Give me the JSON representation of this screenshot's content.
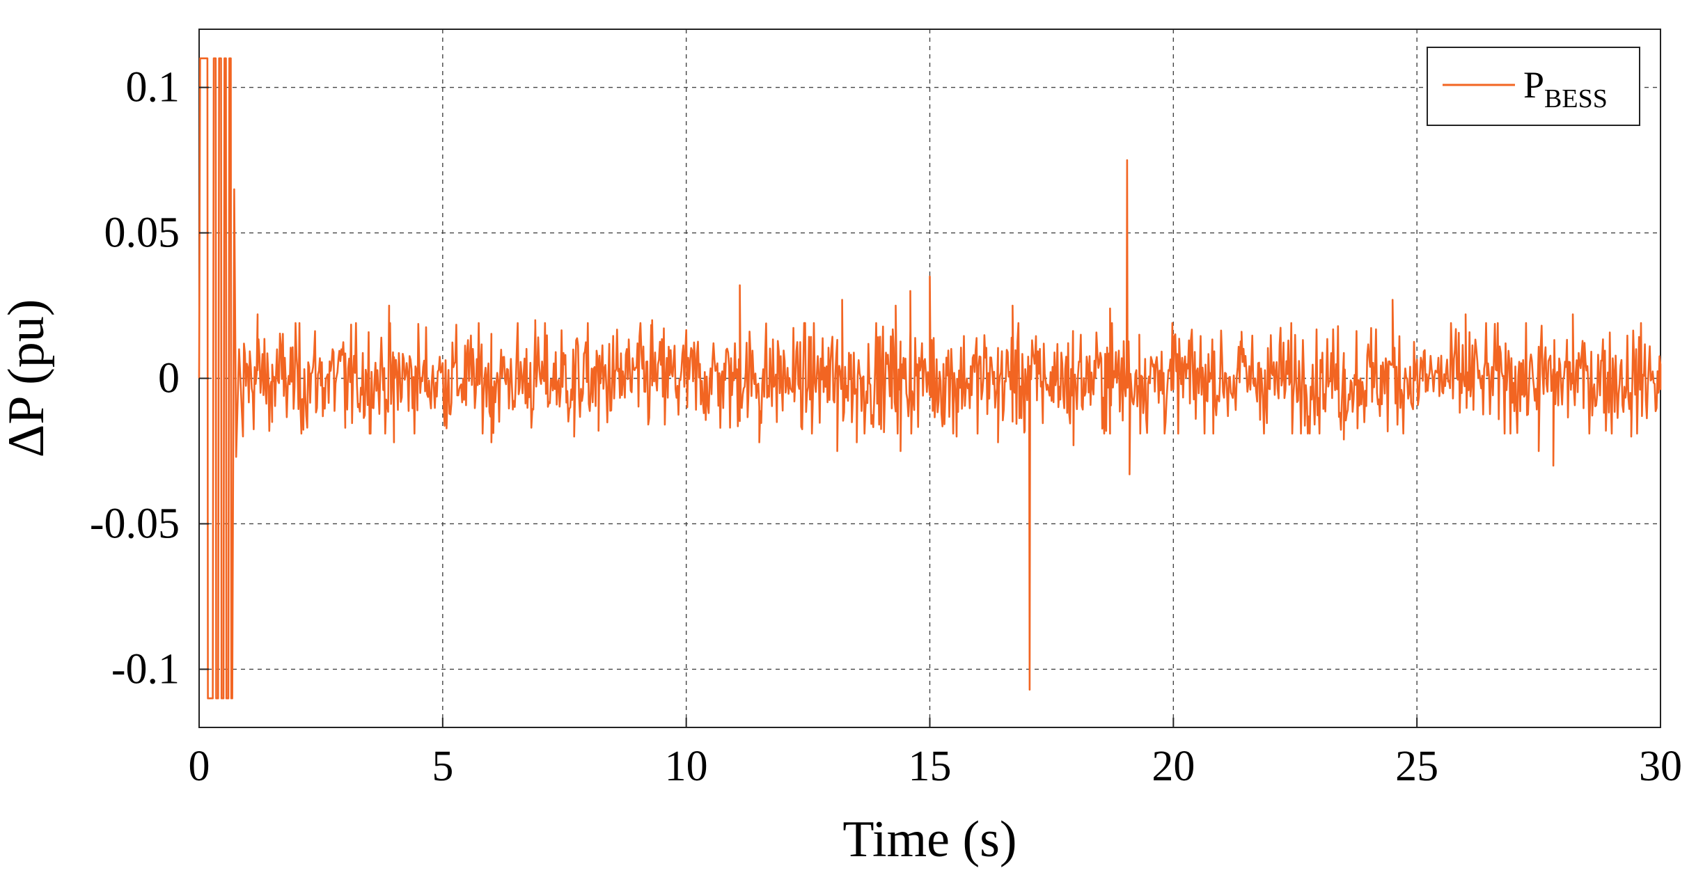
{
  "chart_data": {
    "type": "line",
    "title": "",
    "xlabel": "Time (s)",
    "ylabel": "ΔP (pu)",
    "xlim": [
      0,
      30
    ],
    "ylim": [
      -0.12,
      0.12
    ],
    "xticks": [
      0,
      5,
      10,
      15,
      20,
      25,
      30
    ],
    "xtick_labels": [
      "0",
      "5",
      "10",
      "15",
      "20",
      "25",
      "30"
    ],
    "yticks": [
      0.1,
      0.05,
      0,
      -0.05,
      -0.1
    ],
    "ytick_labels": [
      "0.1",
      "0.05",
      "0",
      "-0.05",
      "-0.1"
    ],
    "grid": true,
    "legend_position": "top-right",
    "series": [
      {
        "name": "P",
        "name_subscript": "BESS",
        "color": "#f26522",
        "noise_std": 0.009,
        "points": [
          [
            0.0,
            0.0
          ],
          [
            0.02,
            0.11
          ],
          [
            0.17,
            0.11
          ],
          [
            0.18,
            -0.11
          ],
          [
            0.28,
            -0.11
          ],
          [
            0.3,
            0.11
          ],
          [
            0.34,
            0.11
          ],
          [
            0.35,
            -0.11
          ],
          [
            0.39,
            -0.11
          ],
          [
            0.41,
            0.11
          ],
          [
            0.45,
            0.11
          ],
          [
            0.46,
            -0.11
          ],
          [
            0.5,
            -0.11
          ],
          [
            0.52,
            0.11
          ],
          [
            0.55,
            0.11
          ],
          [
            0.56,
            -0.11
          ],
          [
            0.6,
            -0.11
          ],
          [
            0.62,
            0.11
          ],
          [
            0.65,
            0.11
          ],
          [
            0.66,
            -0.11
          ],
          [
            0.68,
            -0.11
          ],
          [
            0.72,
            0.065
          ],
          [
            0.76,
            -0.027
          ],
          [
            0.82,
            0.01
          ],
          [
            0.9,
            -0.02
          ],
          [
            1.2,
            0.022
          ],
          [
            1.5,
            -0.015
          ],
          [
            2.1,
            -0.019
          ],
          [
            3.0,
            -0.017
          ],
          [
            3.9,
            0.025
          ],
          [
            4.0,
            -0.022
          ],
          [
            6.0,
            -0.022
          ],
          [
            6.9,
            0.02
          ],
          [
            7.7,
            -0.02
          ],
          [
            8.2,
            -0.018
          ],
          [
            9.3,
            0.02
          ],
          [
            11.1,
            0.032
          ],
          [
            11.5,
            -0.022
          ],
          [
            13.2,
            0.027
          ],
          [
            13.1,
            -0.025
          ],
          [
            13.5,
            -0.022
          ],
          [
            14.3,
            0.025
          ],
          [
            14.4,
            -0.025
          ],
          [
            14.6,
            0.03
          ],
          [
            15.0,
            0.035
          ],
          [
            15.55,
            -0.02
          ],
          [
            16.4,
            -0.022
          ],
          [
            16.7,
            0.025
          ],
          [
            16.95,
            -0.018
          ],
          [
            17.05,
            -0.107
          ],
          [
            17.15,
            0.005
          ],
          [
            17.95,
            -0.023
          ],
          [
            18.7,
            0.024
          ],
          [
            19.05,
            0.075
          ],
          [
            19.1,
            -0.033
          ],
          [
            19.3,
            0.015
          ],
          [
            21.4,
            0.016
          ],
          [
            23.5,
            -0.021
          ],
          [
            24.5,
            0.027
          ],
          [
            26.0,
            0.022
          ],
          [
            27.5,
            -0.025
          ],
          [
            27.8,
            -0.03
          ],
          [
            28.2,
            0.022
          ],
          [
            29.4,
            -0.02
          ],
          [
            29.95,
            -0.005
          ]
        ]
      }
    ]
  }
}
